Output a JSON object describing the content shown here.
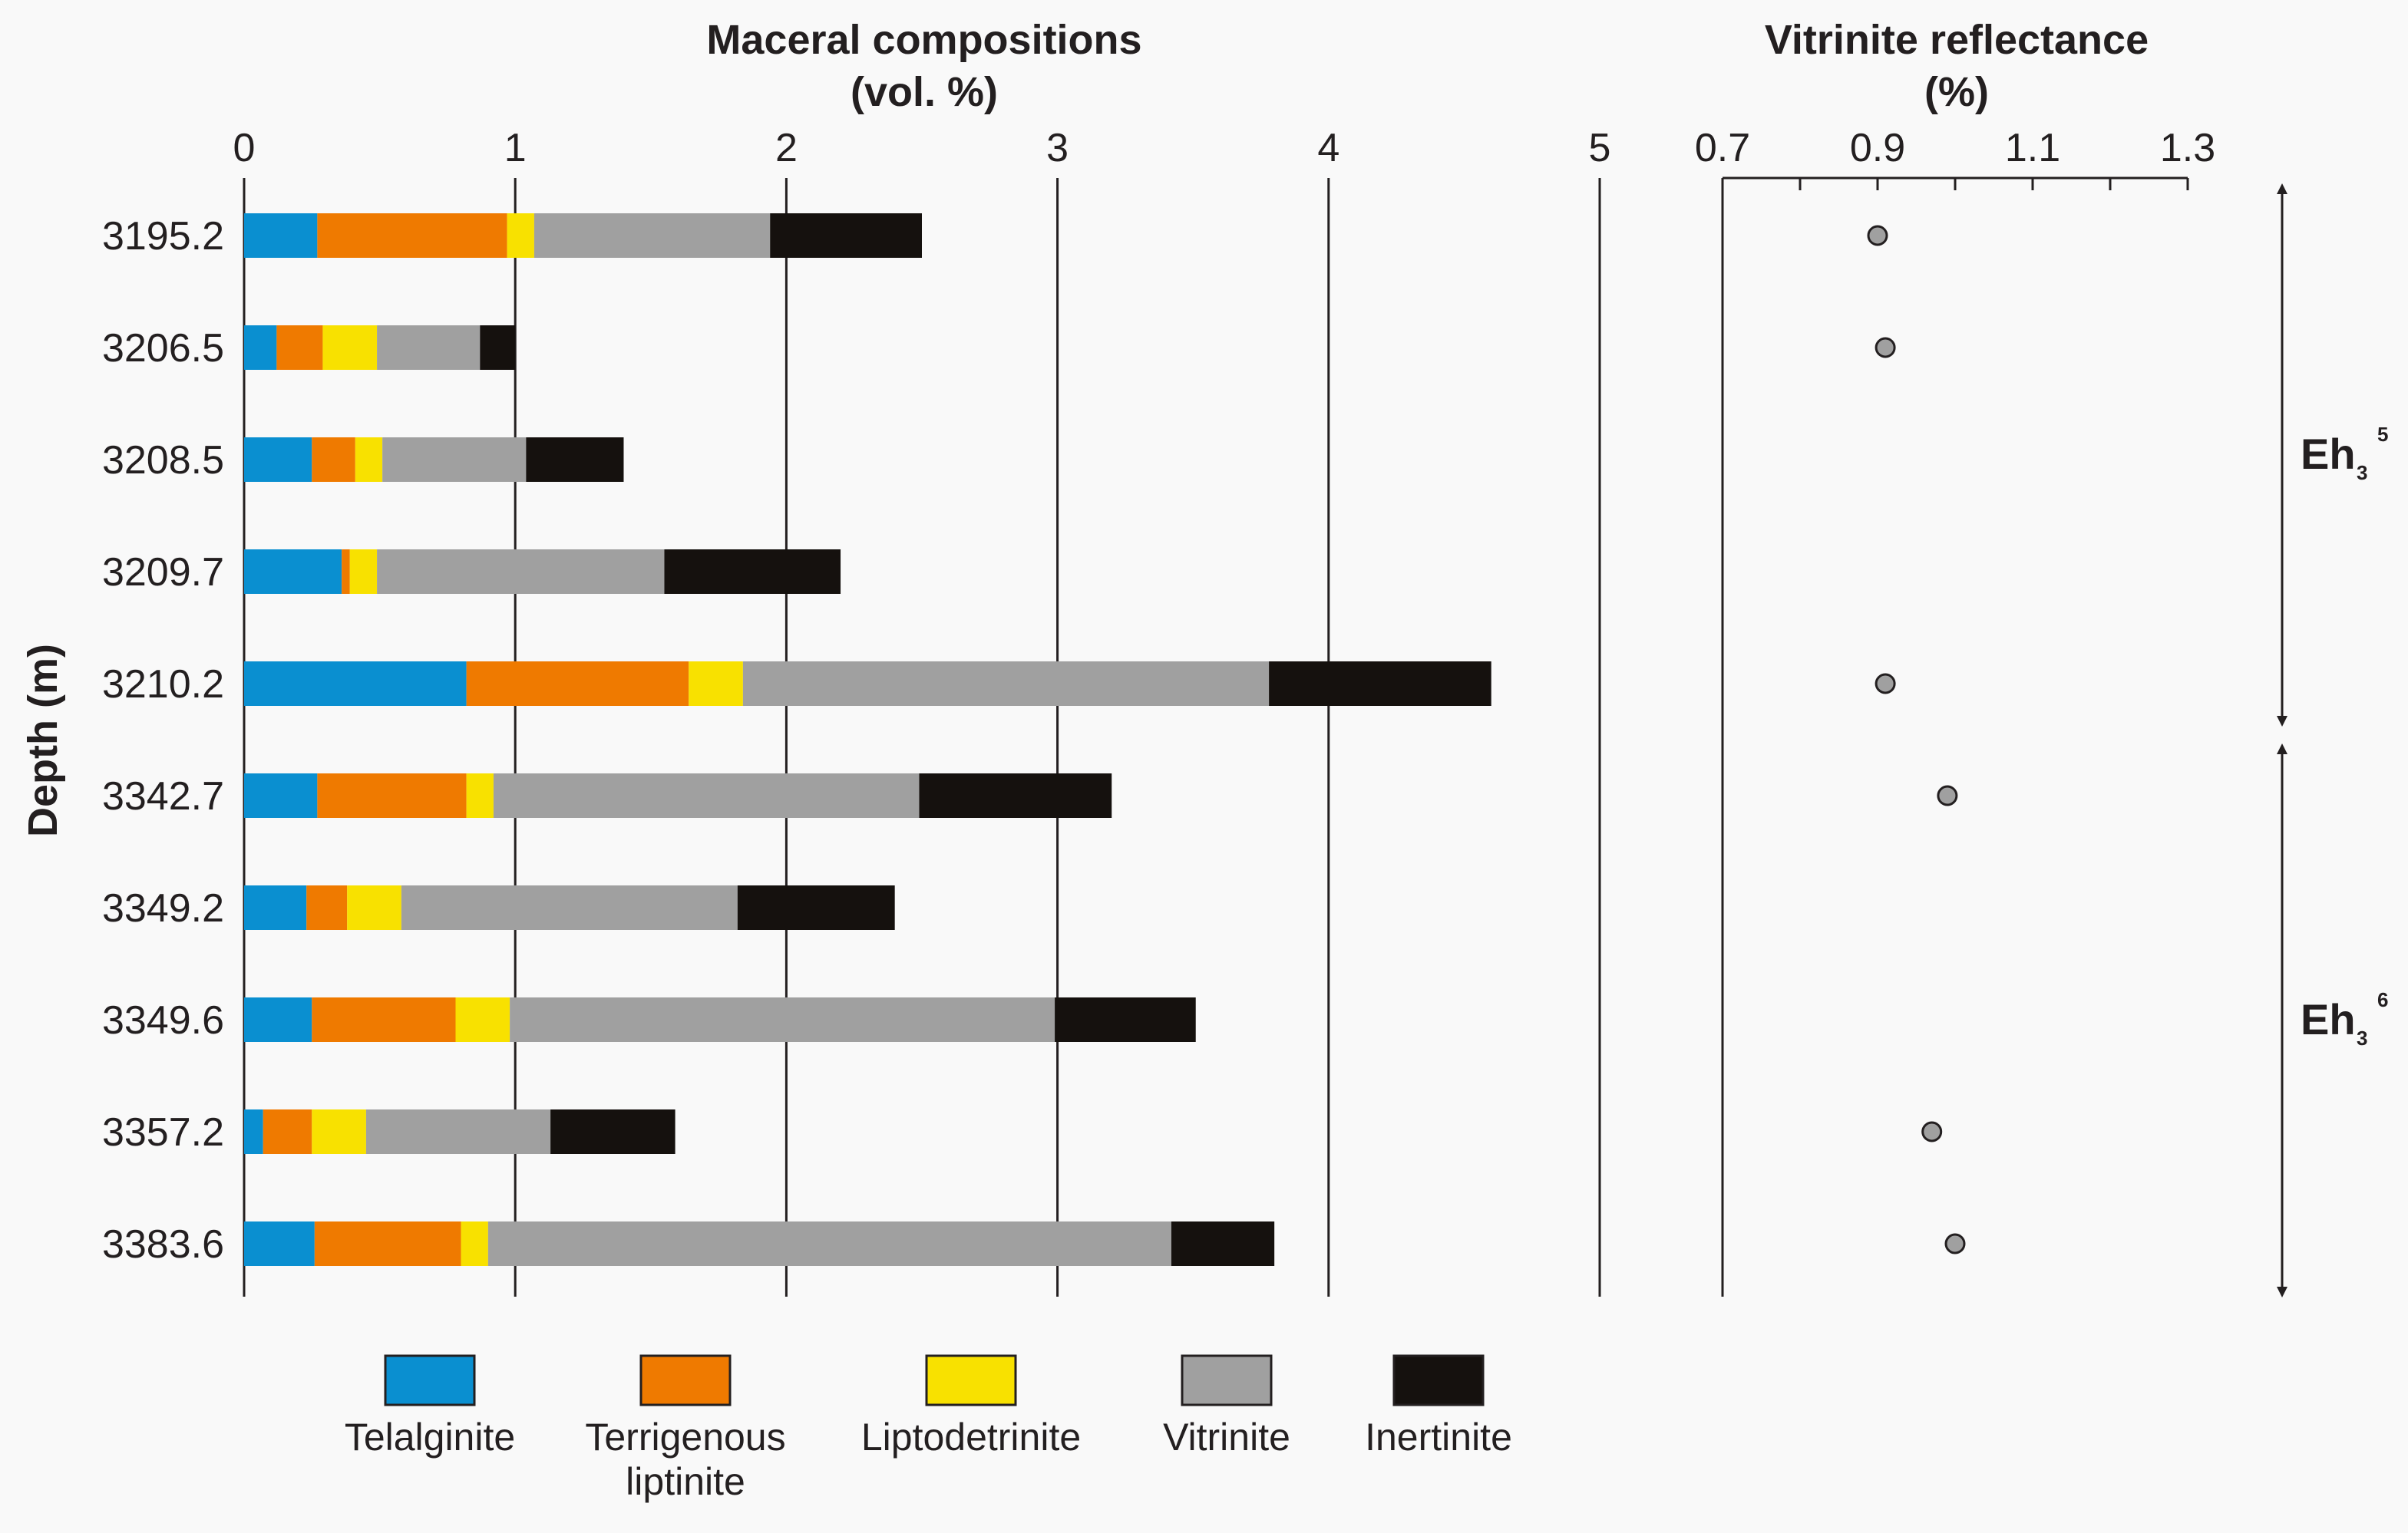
{
  "chart_data": [
    {
      "type": "bar",
      "orientation": "horizontal",
      "stacked": true,
      "title": "Maceral compositions",
      "title_unit": "(vol. %)",
      "ylabel": "Depth (m)",
      "xlim": [
        0,
        5
      ],
      "xticks": [
        "0",
        "1",
        "2",
        "3",
        "4",
        "5"
      ],
      "grid": "vertical",
      "categories": [
        "3195.2",
        "3206.5",
        "3208.5",
        "3209.7",
        "3210.2",
        "3342.7",
        "3349.2",
        "3349.6",
        "3357.2",
        "3383.6"
      ],
      "series": [
        {
          "name": "Telalginite",
          "color": "#0a8fd0",
          "values": [
            0.27,
            0.12,
            0.25,
            0.36,
            0.82,
            0.27,
            0.23,
            0.25,
            0.07,
            0.26
          ]
        },
        {
          "name": "Terrigenous liptinite",
          "color": "#ef7a00",
          "values": [
            0.7,
            0.17,
            0.16,
            0.03,
            0.82,
            0.55,
            0.15,
            0.53,
            0.18,
            0.54
          ]
        },
        {
          "name": "Liptodetrinite",
          "color": "#f8e100",
          "values": [
            0.1,
            0.2,
            0.1,
            0.1,
            0.2,
            0.1,
            0.2,
            0.2,
            0.2,
            0.1
          ]
        },
        {
          "name": "Vitrinite",
          "color": "#a0a0a0",
          "values": [
            0.87,
            0.38,
            0.53,
            1.06,
            1.94,
            1.57,
            1.24,
            2.01,
            0.68,
            2.52
          ]
        },
        {
          "name": "Inertinite",
          "color": "#15110e",
          "values": [
            0.56,
            0.13,
            0.36,
            0.65,
            0.82,
            0.71,
            0.58,
            0.52,
            0.46,
            0.38
          ]
        }
      ],
      "legend": [
        "Telalginite",
        "Terrigenous liptinite",
        "Liptodetrinite",
        "Vitrinite",
        "Inertinite"
      ],
      "legend_position": "bottom"
    },
    {
      "type": "scatter",
      "title": "Vitrinite reflectance",
      "title_unit": "(%)",
      "xlim": [
        0.7,
        1.3
      ],
      "xticks": [
        "0.7",
        "0.9",
        "1.1",
        "1.3"
      ],
      "categories": [
        "3195.2",
        "3206.5",
        "3208.5",
        "3209.7",
        "3210.2",
        "3342.7",
        "3349.2",
        "3349.6",
        "3357.2",
        "3383.6"
      ],
      "values": [
        0.9,
        0.91,
        null,
        null,
        0.91,
        0.99,
        null,
        null,
        0.97,
        1.0
      ],
      "marker_color": "#a0a0a0"
    }
  ],
  "intervals": [
    {
      "label": "Eh",
      "sub": "3",
      "sup": "5",
      "from": "3195.2",
      "to": "3210.2"
    },
    {
      "label": "Eh",
      "sub": "3",
      "sup": "6",
      "from": "3342.7",
      "to": "3383.6"
    }
  ]
}
